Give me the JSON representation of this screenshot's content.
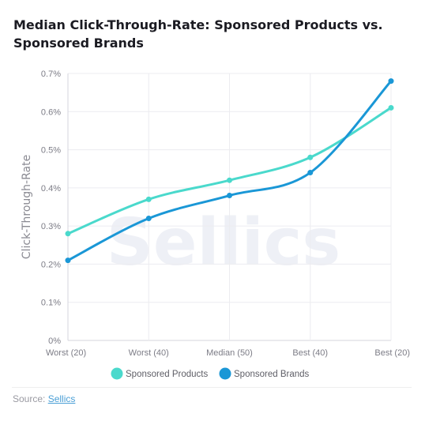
{
  "chart_data": {
    "type": "line",
    "title": "Median Click-Through-Rate: Sponsored Products vs. Sponsored Brands",
    "xlabel": "",
    "ylabel": "Click-Through-Rate",
    "categories": [
      "Worst (20)",
      "Worst (40)",
      "Median (50)",
      "Best (40)",
      "Best (20)"
    ],
    "y_ticks": [
      "0%",
      "0.1%",
      "0.2%",
      "0.3%",
      "0.4%",
      "0.5%",
      "0.6%",
      "0.7%"
    ],
    "ylim": [
      0,
      0.7
    ],
    "grid": true,
    "legend_position": "bottom",
    "series": [
      {
        "name": "Sponsored Products",
        "color": "#4ad9cc",
        "values": [
          0.28,
          0.37,
          0.42,
          0.48,
          0.61
        ]
      },
      {
        "name": "Sponsored Brands",
        "color": "#1a97d6",
        "values": [
          0.21,
          0.32,
          0.38,
          0.44,
          0.68
        ]
      }
    ]
  },
  "watermark": "Sellics",
  "source": {
    "prefix": "Source: ",
    "link_text": "Sellics"
  }
}
